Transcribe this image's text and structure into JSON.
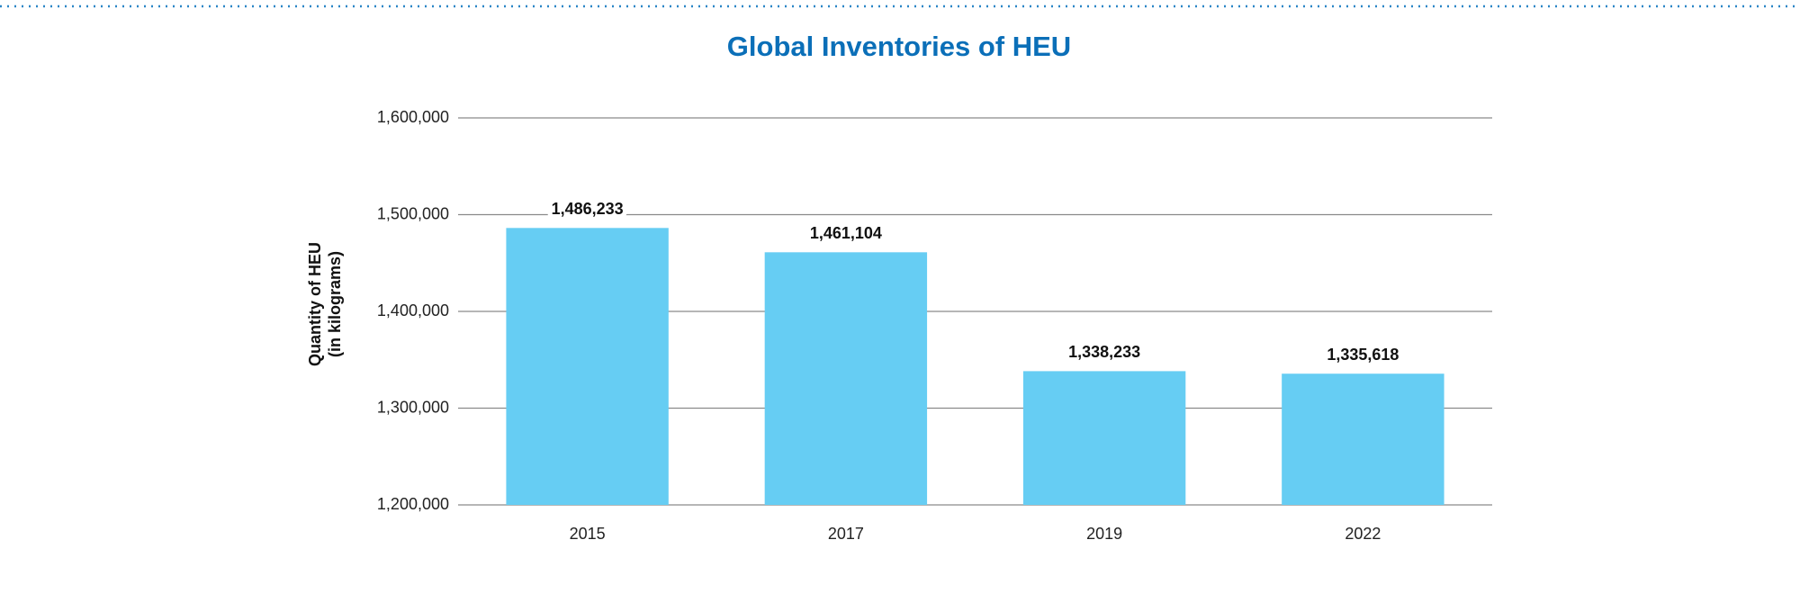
{
  "chart_data": {
    "type": "bar",
    "title": "Global Inventories of HEU",
    "y_label": [
      "Quantity of HEU",
      "(in kilograms)"
    ],
    "categories": [
      "2015",
      "2017",
      "2019",
      "2022"
    ],
    "values": [
      1486233,
      1461104,
      1338233,
      1335618
    ],
    "value_labels": [
      "1,486,233",
      "1,461,104",
      "1,338,233",
      "1,335,618"
    ],
    "color": "#66cdf3",
    "ylim": [
      1200000,
      1600000
    ],
    "yticks": [
      {
        "value": 1200000,
        "label": "1,200,000"
      },
      {
        "value": 1300000,
        "label": "1,300,000"
      },
      {
        "value": 1400000,
        "label": "1,400,000"
      },
      {
        "value": 1500000,
        "label": "1,500,000"
      },
      {
        "value": 1600000,
        "label": "1,600,000"
      }
    ],
    "grid": true
  }
}
